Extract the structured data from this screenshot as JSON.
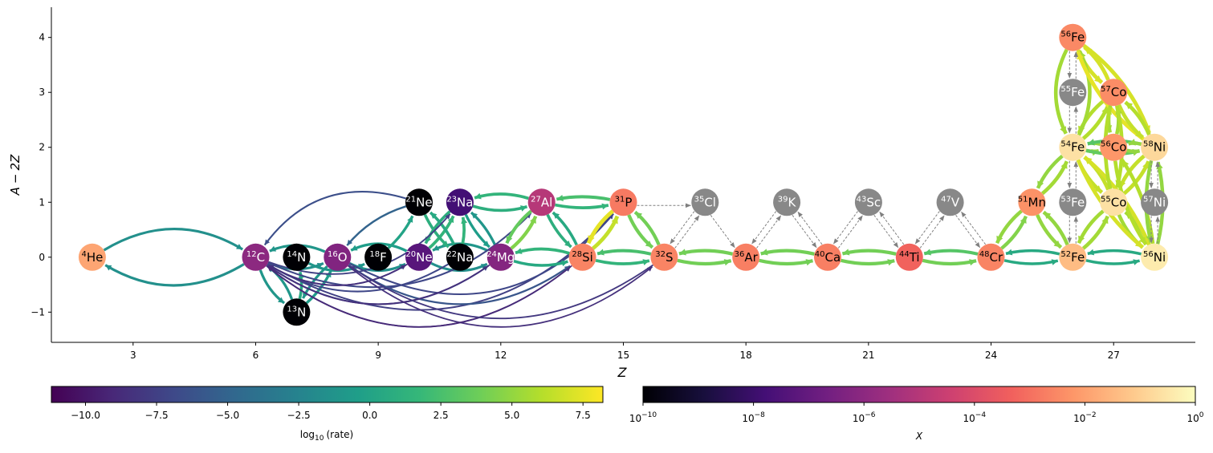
{
  "chart_data": {
    "type": "network",
    "xlabel": "Z",
    "ylabel_main": "A",
    "ylabel_minus": "−",
    "ylabel_rest": "2Z",
    "x_ticks": [
      3,
      6,
      9,
      12,
      15,
      18,
      21,
      24,
      27
    ],
    "x_tick_labels": [
      "3",
      "6",
      "9",
      "12",
      "15",
      "18",
      "21",
      "24",
      "27"
    ],
    "y_ticks": [
      -1,
      0,
      1,
      2,
      3,
      4
    ],
    "y_tick_labels": [
      "−1",
      "0",
      "1",
      "2",
      "3",
      "4"
    ],
    "xlim": [
      1.0,
      29.0
    ],
    "ylim": [
      -1.55,
      4.55
    ],
    "nodes": [
      {
        "id": "he4",
        "mass": "4",
        "symbol": "He",
        "Z": 2,
        "y": 0,
        "log10X": -1.9
      },
      {
        "id": "c12",
        "mass": "12",
        "symbol": "C",
        "Z": 6,
        "y": 0,
        "log10X": -6.0
      },
      {
        "id": "n13",
        "mass": "13",
        "symbol": "N",
        "Z": 7,
        "y": -1,
        "log10X": -10
      },
      {
        "id": "n14",
        "mass": "14",
        "symbol": "N",
        "Z": 7,
        "y": 0,
        "log10X": -10
      },
      {
        "id": "o16",
        "mass": "16",
        "symbol": "O",
        "Z": 8,
        "y": 0,
        "log10X": -6.3
      },
      {
        "id": "f18",
        "mass": "18",
        "symbol": "F",
        "Z": 9,
        "y": 0,
        "log10X": -10
      },
      {
        "id": "ne20",
        "mass": "20",
        "symbol": "Ne",
        "Z": 10,
        "y": 0,
        "log10X": -7.3
      },
      {
        "id": "ne21",
        "mass": "21",
        "symbol": "Ne",
        "Z": 10,
        "y": 1,
        "log10X": -10
      },
      {
        "id": "na22",
        "mass": "22",
        "symbol": "Na",
        "Z": 11,
        "y": 0,
        "log10X": -10
      },
      {
        "id": "na23",
        "mass": "23",
        "symbol": "Na",
        "Z": 11,
        "y": 1,
        "log10X": -7.8
      },
      {
        "id": "mg24",
        "mass": "24",
        "symbol": "Mg",
        "Z": 12,
        "y": 0,
        "log10X": -6.2
      },
      {
        "id": "al27",
        "mass": "27",
        "symbol": "Al",
        "Z": 13,
        "y": 1,
        "log10X": -5.0
      },
      {
        "id": "si28",
        "mass": "28",
        "symbol": "Si",
        "Z": 14,
        "y": 0,
        "log10X": -2.6
      },
      {
        "id": "p31",
        "mass": "31",
        "symbol": "P",
        "Z": 15,
        "y": 1,
        "log10X": -2.8
      },
      {
        "id": "s32",
        "mass": "32",
        "symbol": "S",
        "Z": 16,
        "y": 0,
        "log10X": -2.6
      },
      {
        "id": "cl35",
        "mass": "35",
        "symbol": "Cl",
        "Z": 17,
        "y": 1,
        "log10X": null
      },
      {
        "id": "ar36",
        "mass": "36",
        "symbol": "Ar",
        "Z": 18,
        "y": 0,
        "log10X": -2.7
      },
      {
        "id": "k39",
        "mass": "39",
        "symbol": "K",
        "Z": 19,
        "y": 1,
        "log10X": null
      },
      {
        "id": "ca40",
        "mass": "40",
        "symbol": "Ca",
        "Z": 20,
        "y": 0,
        "log10X": -2.7
      },
      {
        "id": "sc43",
        "mass": "43",
        "symbol": "Sc",
        "Z": 21,
        "y": 1,
        "log10X": null
      },
      {
        "id": "ti44",
        "mass": "44",
        "symbol": "Ti",
        "Z": 22,
        "y": 0,
        "log10X": -3.3
      },
      {
        "id": "v47",
        "mass": "47",
        "symbol": "V",
        "Z": 23,
        "y": 1,
        "log10X": null
      },
      {
        "id": "cr48",
        "mass": "48",
        "symbol": "Cr",
        "Z": 24,
        "y": 0,
        "log10X": -2.6
      },
      {
        "id": "mn51",
        "mass": "51",
        "symbol": "Mn",
        "Z": 25,
        "y": 1,
        "log10X": -2.3
      },
      {
        "id": "fe52",
        "mass": "52",
        "symbol": "Fe",
        "Z": 26,
        "y": 0,
        "log10X": -1.4
      },
      {
        "id": "fe53",
        "mass": "53",
        "symbol": "Fe",
        "Z": 26,
        "y": 1,
        "log10X": null
      },
      {
        "id": "fe54",
        "mass": "54",
        "symbol": "Fe",
        "Z": 26,
        "y": 2,
        "log10X": -0.6
      },
      {
        "id": "fe55",
        "mass": "55",
        "symbol": "Fe",
        "Z": 26,
        "y": 3,
        "log10X": null
      },
      {
        "id": "fe56",
        "mass": "56",
        "symbol": "Fe",
        "Z": 26,
        "y": 4,
        "log10X": -2.5
      },
      {
        "id": "co55",
        "mass": "55",
        "symbol": "Co",
        "Z": 27,
        "y": 1,
        "log10X": -0.6
      },
      {
        "id": "co56",
        "mass": "56",
        "symbol": "Co",
        "Z": 27,
        "y": 2,
        "log10X": -2.2
      },
      {
        "id": "co57",
        "mass": "57",
        "symbol": "Co",
        "Z": 27,
        "y": 3,
        "log10X": -2.4
      },
      {
        "id": "ni56",
        "mass": "56",
        "symbol": "Ni",
        "Z": 28,
        "y": 0,
        "log10X": -0.4
      },
      {
        "id": "ni57",
        "mass": "57",
        "symbol": "Ni",
        "Z": 28,
        "y": 1,
        "log10X": null
      },
      {
        "id": "ni58",
        "mass": "58",
        "symbol": "Ni",
        "Z": 28,
        "y": 2,
        "log10X": -0.8
      }
    ],
    "edges": [
      {
        "from": "he4",
        "to": "c12",
        "log10rate": -1.5,
        "bend": -0.3
      },
      {
        "from": "c12",
        "to": "he4",
        "log10rate": -1.5,
        "bend": -0.3
      },
      {
        "from": "c12",
        "to": "n13",
        "log10rate": -1.0,
        "bend": 0.15
      },
      {
        "from": "n13",
        "to": "c12",
        "log10rate": -1.0,
        "bend": 0.15
      },
      {
        "from": "c12",
        "to": "o16",
        "log10rate": -1.5,
        "bend": 0.22
      },
      {
        "from": "o16",
        "to": "c12",
        "log10rate": -1.0,
        "bend": 0.22
      },
      {
        "from": "n13",
        "to": "n14",
        "log10rate": 0.5,
        "bend": 0.12
      },
      {
        "from": "n13",
        "to": "o16",
        "log10rate": -0.5,
        "bend": 0.1
      },
      {
        "from": "o16",
        "to": "n13",
        "log10rate": -1.0,
        "bend": 0.1
      },
      {
        "from": "n14",
        "to": "f18",
        "log10rate": -1.0,
        "bend": 0.25
      },
      {
        "from": "o16",
        "to": "ne20",
        "log10rate": -1.5,
        "bend": 0.25
      },
      {
        "from": "ne20",
        "to": "o16",
        "log10rate": -0.5,
        "bend": 0.25
      },
      {
        "from": "f18",
        "to": "ne21",
        "log10rate": 0.0,
        "bend": 0.1
      },
      {
        "from": "ne21",
        "to": "o16",
        "log10rate": -5.0,
        "bend": 0.15
      },
      {
        "from": "ne20",
        "to": "na23",
        "log10rate": 1.5,
        "bend": 0.1
      },
      {
        "from": "na23",
        "to": "ne20",
        "log10rate": 1.0,
        "bend": 0.1
      },
      {
        "from": "ne20",
        "to": "mg24",
        "log10rate": -1.5,
        "bend": 0.25
      },
      {
        "from": "mg24",
        "to": "ne20",
        "log10rate": -1.0,
        "bend": 0.25
      },
      {
        "from": "ne21",
        "to": "na22",
        "log10rate": 1.0,
        "bend": 0.1
      },
      {
        "from": "na22",
        "to": "ne21",
        "log10rate": 0.5,
        "bend": 0.1
      },
      {
        "from": "na23",
        "to": "mg24",
        "log10rate": -0.5,
        "bend": 0.1
      },
      {
        "from": "mg24",
        "to": "na23",
        "log10rate": -1.0,
        "bend": 0.1
      },
      {
        "from": "na22",
        "to": "na23",
        "log10rate": 1.5,
        "bend": 0.1
      },
      {
        "from": "c12",
        "to": "ne20",
        "log10rate": -8.0,
        "bend": 0.3
      },
      {
        "from": "c12",
        "to": "na23",
        "log10rate": -7.5,
        "bend": 0.35
      },
      {
        "from": "c12",
        "to": "mg24",
        "log10rate": -7.0,
        "bend": 0.35
      },
      {
        "from": "c12",
        "to": "al27",
        "log10rate": -7.0,
        "bend": 0.35
      },
      {
        "from": "c12",
        "to": "si28",
        "log10rate": -8.0,
        "bend": 0.4
      },
      {
        "from": "c12",
        "to": "p31",
        "log10rate": -7.5,
        "bend": 0.4
      },
      {
        "from": "o16",
        "to": "si28",
        "log10rate": -6.0,
        "bend": 0.35
      },
      {
        "from": "o16",
        "to": "p31",
        "log10rate": -7.0,
        "bend": 0.4
      },
      {
        "from": "o16",
        "to": "s32",
        "log10rate": -8.5,
        "bend": 0.4
      },
      {
        "from": "ne21",
        "to": "c12",
        "log10rate": -6.5,
        "bend": 0.35
      },
      {
        "from": "na22",
        "to": "c12",
        "log10rate": -7.0,
        "bend": -0.3
      },
      {
        "from": "ne20",
        "to": "c12",
        "log10rate": -8.5,
        "bend": -0.3
      },
      {
        "from": "mg24",
        "to": "c12",
        "log10rate": -8.5,
        "bend": -0.35
      },
      {
        "from": "si28",
        "to": "c12",
        "log10rate": -9.0,
        "bend": -0.4
      },
      {
        "from": "s32",
        "to": "o16",
        "log10rate": -8.0,
        "bend": -0.35
      },
      {
        "from": "mg24",
        "to": "al27",
        "log10rate": 4.5,
        "bend": 0.12
      },
      {
        "from": "al27",
        "to": "mg24",
        "log10rate": 3.5,
        "bend": 0.12
      },
      {
        "from": "al27",
        "to": "na23",
        "log10rate": 1.5,
        "bend": 0.15
      },
      {
        "from": "na23",
        "to": "al27",
        "log10rate": 1.0,
        "bend": 0.15
      },
      {
        "from": "mg24",
        "to": "si28",
        "log10rate": 0.5,
        "bend": 0.15
      },
      {
        "from": "si28",
        "to": "mg24",
        "log10rate": 1.5,
        "bend": 0.15
      },
      {
        "from": "al27",
        "to": "si28",
        "log10rate": 1.0,
        "bend": 0.1
      },
      {
        "from": "si28",
        "to": "al27",
        "log10rate": 0.5,
        "bend": 0.1
      },
      {
        "from": "al27",
        "to": "p31",
        "log10rate": 1.5,
        "bend": 0.1
      },
      {
        "from": "p31",
        "to": "al27",
        "log10rate": 2.5,
        "bend": 0.1
      },
      {
        "from": "si28",
        "to": "p31",
        "log10rate": 6.5,
        "bend": 0.12
      },
      {
        "from": "p31",
        "to": "si28",
        "log10rate": 7.5,
        "bend": 0.12
      },
      {
        "from": "si28",
        "to": "s32",
        "log10rate": 1.5,
        "bend": 0.12
      },
      {
        "from": "s32",
        "to": "si28",
        "log10rate": 2.5,
        "bend": 0.12
      },
      {
        "from": "p31",
        "to": "s32",
        "log10rate": 4.0,
        "bend": 0.12
      },
      {
        "from": "s32",
        "to": "p31",
        "log10rate": 4.0,
        "bend": 0.12
      },
      {
        "from": "s32",
        "to": "ar36",
        "log10rate": 4.0,
        "bend": 0.12
      },
      {
        "from": "ar36",
        "to": "s32",
        "log10rate": 4.0,
        "bend": 0.12
      },
      {
        "from": "ar36",
        "to": "ca40",
        "log10rate": 4.0,
        "bend": 0.12
      },
      {
        "from": "ca40",
        "to": "ar36",
        "log10rate": 4.0,
        "bend": 0.12
      },
      {
        "from": "ca40",
        "to": "ti44",
        "log10rate": 4.0,
        "bend": 0.12
      },
      {
        "from": "ti44",
        "to": "ca40",
        "log10rate": 4.0,
        "bend": 0.12
      },
      {
        "from": "ti44",
        "to": "cr48",
        "log10rate": 4.0,
        "bend": 0.12
      },
      {
        "from": "cr48",
        "to": "ti44",
        "log10rate": 3.0,
        "bend": 0.12
      },
      {
        "from": "cr48",
        "to": "fe52",
        "log10rate": 0.5,
        "bend": 0.12
      },
      {
        "from": "fe52",
        "to": "cr48",
        "log10rate": 0.5,
        "bend": 0.12
      },
      {
        "from": "fe52",
        "to": "ni56",
        "log10rate": 0.5,
        "bend": 0.12
      },
      {
        "from": "ni56",
        "to": "fe52",
        "log10rate": 0.5,
        "bend": 0.12
      },
      {
        "from": "cr48",
        "to": "mn51",
        "log10rate": 4.5,
        "bend": 0.12
      },
      {
        "from": "mn51",
        "to": "cr48",
        "log10rate": 5.0,
        "bend": 0.12
      },
      {
        "from": "mn51",
        "to": "fe52",
        "log10rate": 5.0,
        "bend": 0.12
      },
      {
        "from": "fe52",
        "to": "mn51",
        "log10rate": 5.0,
        "bend": 0.12
      },
      {
        "from": "mn51",
        "to": "fe54",
        "log10rate": 5.5,
        "bend": 0.12
      },
      {
        "from": "fe54",
        "to": "mn51",
        "log10rate": 5.0,
        "bend": 0.12
      },
      {
        "from": "fe52",
        "to": "co55",
        "log10rate": 5.5,
        "bend": 0.12
      },
      {
        "from": "co55",
        "to": "fe52",
        "log10rate": 5.5,
        "bend": 0.12
      },
      {
        "from": "fe54",
        "to": "co55",
        "log10rate": 6.5,
        "bend": 0.12
      },
      {
        "from": "co55",
        "to": "fe54",
        "log10rate": 6.5,
        "bend": 0.12
      },
      {
        "from": "co55",
        "to": "ni56",
        "log10rate": 5.5,
        "bend": 0.12
      },
      {
        "from": "ni56",
        "to": "co55",
        "log10rate": 5.5,
        "bend": 0.12
      },
      {
        "from": "fe54",
        "to": "co56",
        "log10rate": 5.0,
        "bend": 0.12
      },
      {
        "from": "co56",
        "to": "fe54",
        "log10rate": 5.0,
        "bend": 0.12
      },
      {
        "from": "fe54",
        "to": "ni58",
        "log10rate": 3.5,
        "bend": 0.12
      },
      {
        "from": "ni58",
        "to": "fe54",
        "log10rate": 3.0,
        "bend": 0.12
      },
      {
        "from": "fe54",
        "to": "co57",
        "log10rate": 6.0,
        "bend": 0.12
      },
      {
        "from": "co57",
        "to": "fe54",
        "log10rate": 6.0,
        "bend": 0.12
      },
      {
        "from": "fe54",
        "to": "ni56",
        "log10rate": 7.0,
        "bend": 0.12
      },
      {
        "from": "ni56",
        "to": "fe54",
        "log10rate": 7.0,
        "bend": 0.12
      },
      {
        "from": "co55",
        "to": "ni58",
        "log10rate": 6.5,
        "bend": 0.12
      },
      {
        "from": "ni58",
        "to": "co55",
        "log10rate": 6.5,
        "bend": 0.12
      },
      {
        "from": "co56",
        "to": "ni56",
        "log10rate": 6.0,
        "bend": 0.12
      },
      {
        "from": "ni56",
        "to": "co56",
        "log10rate": 6.0,
        "bend": 0.12
      },
      {
        "from": "co56",
        "to": "ni58",
        "log10rate": 5.0,
        "bend": 0.12
      },
      {
        "from": "ni58",
        "to": "co56",
        "log10rate": 5.0,
        "bend": 0.12
      },
      {
        "from": "fe56",
        "to": "co57",
        "log10rate": 7.0,
        "bend": 0.12
      },
      {
        "from": "co57",
        "to": "fe56",
        "log10rate": 7.0,
        "bend": 0.12
      },
      {
        "from": "fe56",
        "to": "fe54",
        "log10rate": 5.5,
        "bend": 0.25
      },
      {
        "from": "fe54",
        "to": "fe56",
        "log10rate": 5.5,
        "bend": 0.25
      },
      {
        "from": "fe56",
        "to": "ni58",
        "log10rate": 7.0,
        "bend": -0.15
      },
      {
        "from": "ni58",
        "to": "fe56",
        "log10rate": 7.5,
        "bend": -0.15
      },
      {
        "from": "co57",
        "to": "ni58",
        "log10rate": 6.5,
        "bend": 0.12
      },
      {
        "from": "ni58",
        "to": "co57",
        "log10rate": 6.0,
        "bend": 0.12
      },
      {
        "from": "co56",
        "to": "co57",
        "log10rate": 5.5,
        "bend": 0.12
      },
      {
        "from": "co57",
        "to": "co56",
        "log10rate": 5.5,
        "bend": 0.12
      },
      {
        "from": "ni56",
        "to": "ni58",
        "log10rate": 5.0,
        "bend": 0.12
      },
      {
        "from": "ni58",
        "to": "ni56",
        "log10rate": 5.0,
        "bend": 0.12
      },
      {
        "from": "co55",
        "to": "co57",
        "log10rate": 6.0,
        "bend": -0.12
      },
      {
        "from": "co57",
        "to": "co55",
        "log10rate": 6.0,
        "bend": -0.12
      }
    ],
    "dashed_edges": [
      [
        "p31",
        "cl35"
      ],
      [
        "cl35",
        "s32"
      ],
      [
        "s32",
        "cl35"
      ],
      [
        "cl35",
        "ar36"
      ],
      [
        "ar36",
        "k39"
      ],
      [
        "k39",
        "ar36"
      ],
      [
        "k39",
        "ca40"
      ],
      [
        "ca40",
        "k39"
      ],
      [
        "ca40",
        "sc43"
      ],
      [
        "sc43",
        "ca40"
      ],
      [
        "sc43",
        "ti44"
      ],
      [
        "ti44",
        "sc43"
      ],
      [
        "ti44",
        "v47"
      ],
      [
        "v47",
        "ti44"
      ],
      [
        "v47",
        "cr48"
      ],
      [
        "cr48",
        "v47"
      ],
      [
        "fe52",
        "fe53"
      ],
      [
        "fe53",
        "fe52"
      ],
      [
        "fe53",
        "fe54"
      ],
      [
        "fe54",
        "fe53"
      ],
      [
        "fe54",
        "fe55"
      ],
      [
        "fe55",
        "fe54"
      ],
      [
        "fe55",
        "fe56"
      ],
      [
        "fe56",
        "fe55"
      ],
      [
        "ni56",
        "ni57"
      ],
      [
        "ni57",
        "ni56"
      ],
      [
        "ni57",
        "ni58"
      ],
      [
        "ni58",
        "ni57"
      ]
    ],
    "colorbar_rate": {
      "label_prefix": "log",
      "label_sub": "10",
      "label_suffix": "(rate)",
      "range": [
        -11.2,
        8.2
      ],
      "ticks": [
        -10.0,
        -7.5,
        -5.0,
        -2.5,
        0.0,
        2.5,
        5.0,
        7.5
      ],
      "tick_labels": [
        "−10.0",
        "−7.5",
        "−5.0",
        "−2.5",
        "0.0",
        "2.5",
        "5.0",
        "7.5"
      ]
    },
    "colorbar_abund": {
      "label": "X",
      "range_log10": [
        -10,
        0
      ],
      "ticks_log10": [
        -10,
        -8,
        -6,
        -4,
        -2,
        0
      ],
      "tick_labels_base": "10",
      "tick_labels_exp": [
        "−10",
        "−8",
        "−6",
        "−4",
        "−2",
        "0"
      ],
      "last_tick_label": "10"
    },
    "colors": {
      "background": "#ffffff",
      "unknown_node": "#888888",
      "dashed_edge": "#808080",
      "axis": "#000000"
    }
  }
}
